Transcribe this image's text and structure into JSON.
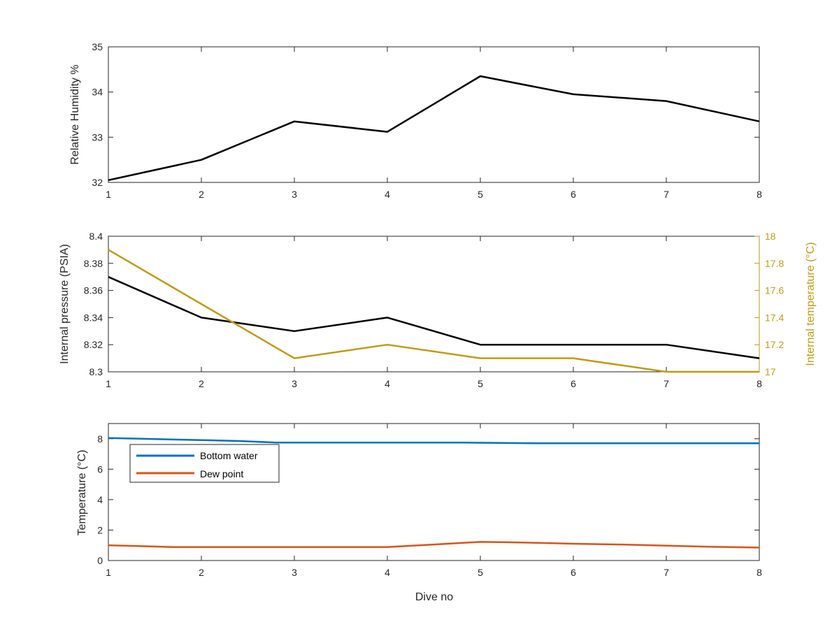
{
  "chart_data": [
    {
      "type": "line",
      "xlabel": "",
      "ylabel": "Relative Humidity %",
      "xlim": [
        1,
        8
      ],
      "ylim": [
        32,
        35
      ],
      "xticks": [
        1,
        2,
        3,
        4,
        5,
        6,
        7,
        8
      ],
      "yticks": [
        32,
        33,
        34,
        35
      ],
      "grid": false,
      "series": [
        {
          "color": "#000000",
          "x": [
            1,
            2,
            3,
            4,
            5,
            6,
            7,
            8
          ],
          "y": [
            32.05,
            32.5,
            33.35,
            33.12,
            34.35,
            33.95,
            33.8,
            33.35
          ]
        }
      ]
    },
    {
      "type": "line",
      "xlabel": "",
      "ylabel": "Internal pressure (PSIA)",
      "y2label": "Internal temperature (°C)",
      "xlim": [
        1,
        8
      ],
      "ylim": [
        8.3,
        8.4
      ],
      "y2lim": [
        17,
        18
      ],
      "xticks": [
        1,
        2,
        3,
        4,
        5,
        6,
        7,
        8
      ],
      "yticks": [
        8.3,
        8.32,
        8.34,
        8.36,
        8.38,
        8.4
      ],
      "yticklabels": [
        "8.3",
        "8.32",
        "8.34",
        "8.36",
        "8.38",
        "8.4"
      ],
      "y2ticks": [
        17,
        17.2,
        17.4,
        17.6,
        17.8,
        18
      ],
      "y2ticklabels": [
        "17",
        "17.2",
        "17.4",
        "17.6",
        "17.8",
        "18"
      ],
      "y2color": "#C29A14",
      "grid": false,
      "series": [
        {
          "axis": "left",
          "color": "#000000",
          "x": [
            1,
            2,
            3,
            4,
            5,
            6,
            7,
            8
          ],
          "y": [
            8.37,
            8.34,
            8.33,
            8.34,
            8.32,
            8.32,
            8.32,
            8.31
          ]
        },
        {
          "axis": "right",
          "color": "#C29A14",
          "x": [
            1,
            2,
            3,
            4,
            5,
            6,
            7,
            8
          ],
          "y": [
            17.9,
            17.5,
            17.1,
            17.2,
            17.1,
            17.1,
            17.0,
            17.0
          ]
        }
      ]
    },
    {
      "type": "line",
      "xlabel": "Dive no",
      "ylabel": "Temperature (°C)",
      "xlim": [
        1,
        8
      ],
      "ylim": [
        0,
        9
      ],
      "xticks": [
        1,
        2,
        3,
        4,
        5,
        6,
        7,
        8
      ],
      "yticks": [
        0,
        2,
        4,
        6,
        8
      ],
      "grid": false,
      "legend": "top-left",
      "series": [
        {
          "name": "Bottom water",
          "color": "#0072BD",
          "x": [
            1,
            1.35,
            1.7,
            2.1,
            2.4,
            2.8,
            4.8,
            5.6,
            6.6,
            7.0,
            8.0
          ],
          "y": [
            8.05,
            8.0,
            7.95,
            7.9,
            7.85,
            7.75,
            7.75,
            7.7,
            7.7,
            7.7,
            7.7
          ]
        },
        {
          "name": "Dew point",
          "color": "#D95319",
          "x": [
            1,
            1.3,
            1.7,
            2.0,
            3.0,
            4.0,
            4.5,
            5.0,
            5.3,
            5.7,
            6.0,
            6.5,
            7.0,
            7.5,
            8.0
          ],
          "y": [
            1.0,
            0.95,
            0.88,
            0.88,
            0.88,
            0.88,
            1.05,
            1.22,
            1.2,
            1.15,
            1.1,
            1.05,
            0.98,
            0.9,
            0.85
          ]
        }
      ]
    }
  ]
}
